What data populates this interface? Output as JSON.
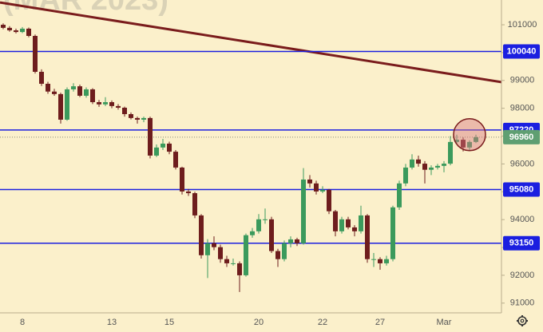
{
  "chart_data": {
    "type": "candlestick",
    "watermark": "(MAR 2023)",
    "categories": [
      null,
      null,
      null,
      "8",
      null,
      null,
      null,
      null,
      null,
      null,
      null,
      null,
      null,
      null,
      null,
      null,
      null,
      "13",
      null,
      null,
      null,
      null,
      null,
      null,
      null,
      null,
      "15",
      null,
      null,
      null,
      null,
      null,
      null,
      null,
      null,
      null,
      null,
      null,
      null,
      null,
      "20",
      null,
      null,
      null,
      null,
      null,
      null,
      null,
      null,
      null,
      "22",
      null,
      null,
      null,
      null,
      null,
      null,
      null,
      null,
      "27",
      null,
      null,
      null,
      null,
      null,
      null,
      null,
      null,
      null,
      "Mar",
      null,
      null,
      null,
      null,
      null
    ],
    "ohlc": [
      [
        101000,
        101050,
        100840,
        100890
      ],
      [
        100890,
        100950,
        100750,
        100800
      ],
      [
        100800,
        100860,
        100690,
        100740
      ],
      [
        100740,
        100920,
        100700,
        100860
      ],
      [
        100860,
        100900,
        100550,
        100600
      ],
      [
        100600,
        100650,
        99250,
        99310
      ],
      [
        99310,
        99400,
        98800,
        98880
      ],
      [
        98880,
        98950,
        98520,
        98600
      ],
      [
        98600,
        98700,
        98450,
        98510
      ],
      [
        98510,
        98560,
        97450,
        97590
      ],
      [
        97590,
        98750,
        97550,
        98680
      ],
      [
        98680,
        98900,
        98600,
        98790
      ],
      [
        98790,
        98850,
        98400,
        98450
      ],
      [
        98450,
        98750,
        98380,
        98680
      ],
      [
        98680,
        98720,
        98150,
        98220
      ],
      [
        98220,
        98300,
        98050,
        98140
      ],
      [
        98140,
        98400,
        98080,
        98220
      ],
      [
        98220,
        98280,
        98000,
        98080
      ],
      [
        98080,
        98150,
        97950,
        98020
      ],
      [
        98020,
        98060,
        97700,
        97790
      ],
      [
        97790,
        97850,
        97600,
        97650
      ],
      [
        97650,
        97700,
        97450,
        97590
      ],
      [
        97590,
        97700,
        97500,
        97650
      ],
      [
        97650,
        97700,
        96200,
        96300
      ],
      [
        96300,
        96700,
        96250,
        96590
      ],
      [
        96590,
        96900,
        96500,
        96730
      ],
      [
        96730,
        96800,
        96350,
        96440
      ],
      [
        96440,
        96500,
        95800,
        95870
      ],
      [
        95870,
        95900,
        94900,
        95010
      ],
      [
        95010,
        95100,
        94850,
        94950
      ],
      [
        94950,
        95000,
        94050,
        94150
      ],
      [
        94150,
        94200,
        92600,
        92720
      ],
      [
        92720,
        93300,
        91900,
        93150
      ],
      [
        93150,
        93400,
        92900,
        93010
      ],
      [
        93010,
        93100,
        92450,
        92580
      ],
      [
        92580,
        92700,
        92300,
        92430
      ],
      [
        92430,
        92600,
        92350,
        92430
      ],
      [
        92430,
        92500,
        91400,
        92000
      ],
      [
        92000,
        93500,
        91950,
        93440
      ],
      [
        93440,
        93700,
        93350,
        93580
      ],
      [
        93580,
        94200,
        93500,
        94010
      ],
      [
        94010,
        94400,
        93850,
        94010
      ],
      [
        94010,
        94100,
        92800,
        92870
      ],
      [
        92870,
        92950,
        92300,
        92580
      ],
      [
        92580,
        93250,
        92500,
        93150
      ],
      [
        93150,
        93400,
        93000,
        93290
      ],
      [
        93290,
        93350,
        93050,
        93150
      ],
      [
        93150,
        95850,
        93100,
        95440
      ],
      [
        95440,
        95600,
        95150,
        95300
      ],
      [
        95300,
        95400,
        94900,
        95010
      ],
      [
        95010,
        95200,
        94950,
        95070
      ],
      [
        95070,
        95100,
        94200,
        94300
      ],
      [
        94300,
        94350,
        93400,
        93580
      ],
      [
        93580,
        94100,
        93500,
        94010
      ],
      [
        94010,
        94100,
        93650,
        93720
      ],
      [
        93720,
        93800,
        93400,
        93580
      ],
      [
        93580,
        94500,
        93500,
        94150
      ],
      [
        94150,
        94200,
        92450,
        92580
      ],
      [
        92580,
        92800,
        92300,
        92580
      ],
      [
        92580,
        92650,
        92200,
        92430
      ],
      [
        92430,
        92700,
        92350,
        92580
      ],
      [
        92580,
        94500,
        92500,
        94440
      ],
      [
        94440,
        95400,
        94350,
        95300
      ],
      [
        95300,
        96000,
        95200,
        95870
      ],
      [
        95870,
        96350,
        95800,
        96160
      ],
      [
        96160,
        96300,
        95900,
        96010
      ],
      [
        96010,
        96100,
        95300,
        95790
      ],
      [
        95790,
        95950,
        95600,
        95870
      ],
      [
        95870,
        96000,
        95800,
        95930
      ],
      [
        95930,
        96100,
        95700,
        96010
      ],
      [
        96010,
        97000,
        95950,
        96790
      ],
      [
        96790,
        97050,
        96700,
        96870
      ],
      [
        96870,
        96950,
        96450,
        96590
      ],
      [
        96590,
        96850,
        96500,
        96790
      ],
      [
        96790,
        97050,
        96750,
        96960
      ]
    ],
    "up_color": "#3b9a5c",
    "down_color": "#6e1d1d",
    "ylim": [
      90650,
      101890
    ],
    "yticks": [
      91000,
      92000,
      93000,
      94000,
      95000,
      96000,
      97000,
      98000,
      99000,
      100000,
      101000
    ],
    "levels": [
      100040,
      97220,
      95080,
      93150
    ],
    "level_color": "#1b1fe0",
    "last_price": 96960,
    "last_price_color": "#5f9f72",
    "trendline": [
      101800,
      98940
    ],
    "trendline_color": "#7a1c1c",
    "highlight": {
      "index": 73,
      "price": 97050
    }
  }
}
